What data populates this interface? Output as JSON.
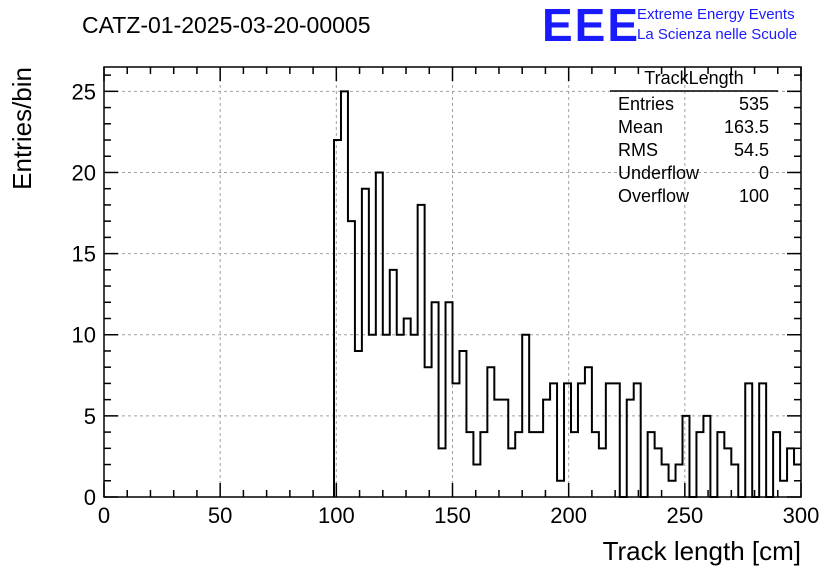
{
  "chart_data": {
    "type": "bar",
    "title": "CATZ-01-2025-03-20-00005",
    "xlabel": "Track length [cm]",
    "ylabel": "Entries/bin",
    "xlim": [
      0,
      300
    ],
    "ylim": [
      0,
      26.5
    ],
    "grid": true,
    "bin_width": 3,
    "x_ticks": [
      "0",
      "50",
      "100",
      "150",
      "200",
      "250",
      "300"
    ],
    "x_tick_values": [
      0,
      50,
      100,
      150,
      200,
      250,
      300
    ],
    "y_ticks": [
      "0",
      "5",
      "10",
      "15",
      "20",
      "25"
    ],
    "y_tick_values": [
      0,
      5,
      10,
      15,
      20,
      25
    ],
    "bin_edges_start": 99,
    "values": [
      22,
      25,
      17,
      9,
      19,
      10,
      20,
      10,
      14,
      10,
      11,
      10,
      18,
      8,
      12,
      3,
      12,
      7,
      9,
      4,
      2,
      4,
      8,
      6,
      6,
      3,
      4,
      10,
      4,
      4,
      6,
      7,
      1,
      7,
      4,
      7,
      8,
      4,
      3,
      7,
      7,
      0,
      6,
      7,
      0,
      4,
      3,
      2,
      1,
      2,
      5,
      0,
      4,
      5,
      0,
      4,
      3,
      2,
      0,
      7,
      0,
      7,
      0,
      4,
      1,
      3,
      2
    ]
  },
  "stats": {
    "title": "TrackLength",
    "rows": [
      {
        "label": "Entries",
        "value": "535"
      },
      {
        "label": "Mean",
        "value": "163.5"
      },
      {
        "label": "RMS",
        "value": "54.5"
      },
      {
        "label": "Underflow",
        "value": "0"
      },
      {
        "label": "Overflow",
        "value": "100"
      }
    ]
  },
  "logo": {
    "mark": "EEE",
    "line1": "Extreme Energy Events",
    "line2": "La Scienza nelle Scuole",
    "color": "#1a1aff"
  }
}
